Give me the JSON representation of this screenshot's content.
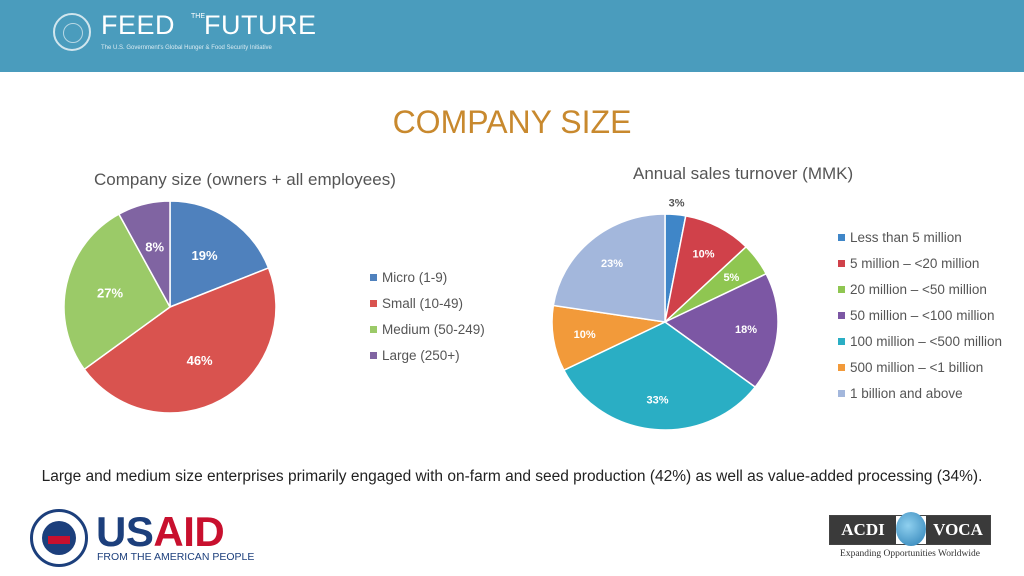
{
  "header": {
    "logo_left": "FEED",
    "logo_the": "THE",
    "logo_right": "FUTURE",
    "logo_subtitle": "The U.S. Government's Global Hunger & Food Security Initiative",
    "color": "#4a9cbd"
  },
  "slide_title": "COMPANY SIZE",
  "caption": "Large and medium size enterprises primarily engaged with on-farm and seed production (42%) as well as value-added processing (34%).",
  "chart_data": [
    {
      "type": "pie",
      "title": "Company size (owners + all employees)",
      "categories": [
        "Micro (1-9)",
        "Small (10-49)",
        "Medium (50-249)",
        "Large  (250+)"
      ],
      "values": [
        19,
        46,
        27,
        8
      ],
      "labels": [
        "19%",
        "46%",
        "27%",
        "8%"
      ],
      "colors": [
        "#4f81bd",
        "#d9534f",
        "#9bca68",
        "#8064a2"
      ],
      "legend_position": "right"
    },
    {
      "type": "pie",
      "title": "Annual sales turnover (MMK)",
      "categories": [
        "Less than 5 million",
        "5 million – <20 million",
        "20 million – <50 million",
        "50 million – <100 million",
        "100 million – <500 million",
        "500 million – <1 billion",
        "1 billion and above"
      ],
      "values": [
        3,
        10,
        5,
        18,
        33,
        10,
        23
      ],
      "labels": [
        "3%",
        "10%",
        "5%",
        "18%",
        "33%",
        "10%",
        "23%"
      ],
      "colors": [
        "#3f86c8",
        "#d0414a",
        "#8fc651",
        "#7c57a4",
        "#2aaec4",
        "#f29a3a",
        "#a3b7dc"
      ],
      "legend_position": "right"
    }
  ],
  "footer": {
    "usaid_a": "US",
    "usaid_b": "AID",
    "usaid_tagline": "FROM THE AMERICAN PEOPLE",
    "acdi_left": "ACDI",
    "acdi_right": "VOCA",
    "acdi_tagline": "Expanding Opportunities Worldwide"
  }
}
